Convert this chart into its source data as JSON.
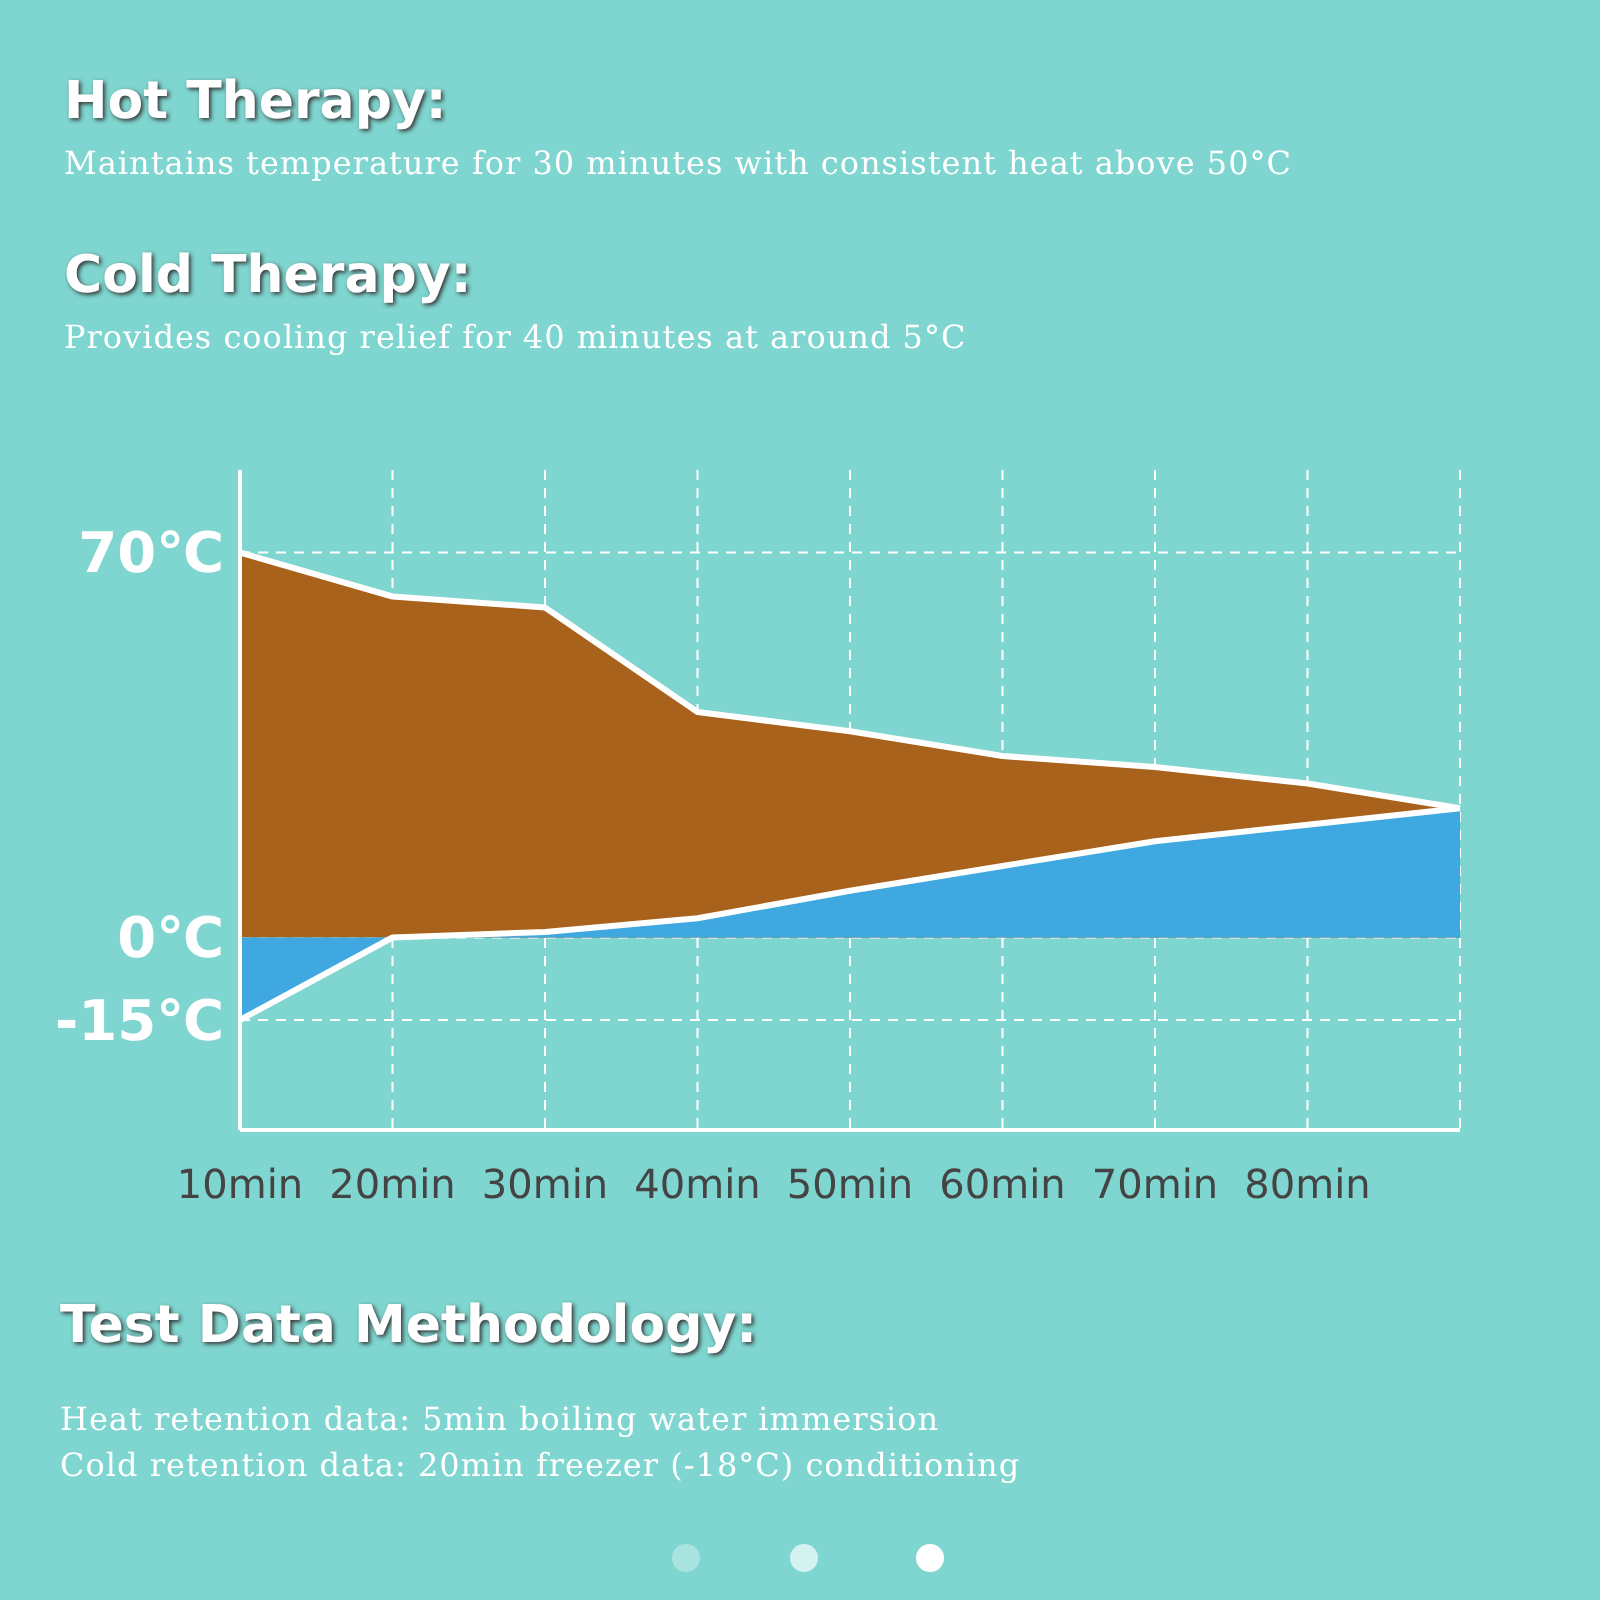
{
  "chart_data": {
    "type": "area",
    "title": "Hot Therapy:",
    "subtitle": "Maintains temperature for 30 minutes with consistent heat above 50°C",
    "annotations": [
      "Cold Therapy:",
      "Provides cooling relief for 40 minutes at around 5°C",
      "Test Data Methodology:",
      "Heat retention data: 5min boiling water immersion",
      "Cold retention data: 20min freezer (-18°C) conditioning"
    ],
    "categories": [
      "10min",
      "20min",
      "30min",
      "40min",
      "50min",
      "60min",
      "70min",
      "80min",
      null
    ],
    "series": [
      {
        "color": "#a8621c",
        "values": [
          70,
          62,
          60,
          41,
          37.5,
          33,
          31,
          28,
          23.5
        ]
      },
      {
        "color": "#3fa8e0",
        "values": [
          -15,
          0,
          1,
          3.5,
          8.5,
          13,
          17.5,
          20.5,
          23.5
        ]
      }
    ],
    "ylim": [
      -35,
      85
    ],
    "yticks": [
      {
        "value": 70,
        "label": "70℃"
      },
      {
        "value": 0,
        "label": "0℃"
      },
      {
        "value": -15,
        "label": "-15℃"
      }
    ],
    "grid": true,
    "marker": "none"
  }
}
